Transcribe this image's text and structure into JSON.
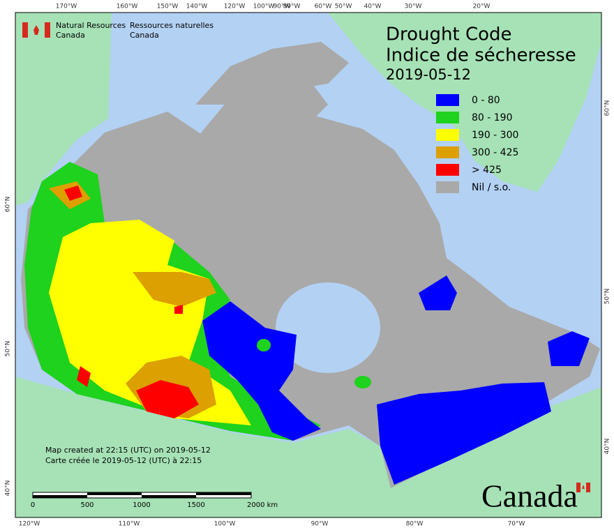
{
  "title": "Drought Code",
  "title_fr": "Indice de sécheresse",
  "date": "2019-05-12",
  "agency": {
    "en": [
      "Natural Resources",
      "Canada"
    ],
    "fr": [
      "Ressources naturelles",
      "Canada"
    ]
  },
  "legend": [
    {
      "label": "0 - 80",
      "color": "#0000ff"
    },
    {
      "label": "80 - 190",
      "color": "#1ed21e"
    },
    {
      "label": "190 - 300",
      "color": "#ffff00"
    },
    {
      "label": "300 - 425",
      "color": "#dca000"
    },
    {
      "label": "> 425",
      "color": "#ff0000"
    },
    {
      "label": "Nil / s.o.",
      "color": "#a9a9a9"
    }
  ],
  "top_labels": [
    "170°W",
    "160°W",
    "150°W",
    "140°W",
    "120°W",
    "100°W",
    "90°W",
    "80°W",
    "60°W",
    "50°W",
    "40°W",
    "30°W",
    "20°W"
  ],
  "bottom_labels": [
    "120°W",
    "110°W",
    "100°W",
    "90°W",
    "80°W",
    "70°W"
  ],
  "left_labels": [
    "60°N",
    "50°N",
    "40°N"
  ],
  "right_labels": [
    "60°N",
    "50°N",
    "40°N"
  ],
  "notes": [
    "Map created at 22:15 (UTC) on 2019-05-12",
    "Carte créée le 2019-05-12 (UTC) à 22:15"
  ],
  "scale_labels": [
    "0",
    "500",
    "1000",
    "1500",
    "2000 km"
  ],
  "wordmark": "Canada"
}
